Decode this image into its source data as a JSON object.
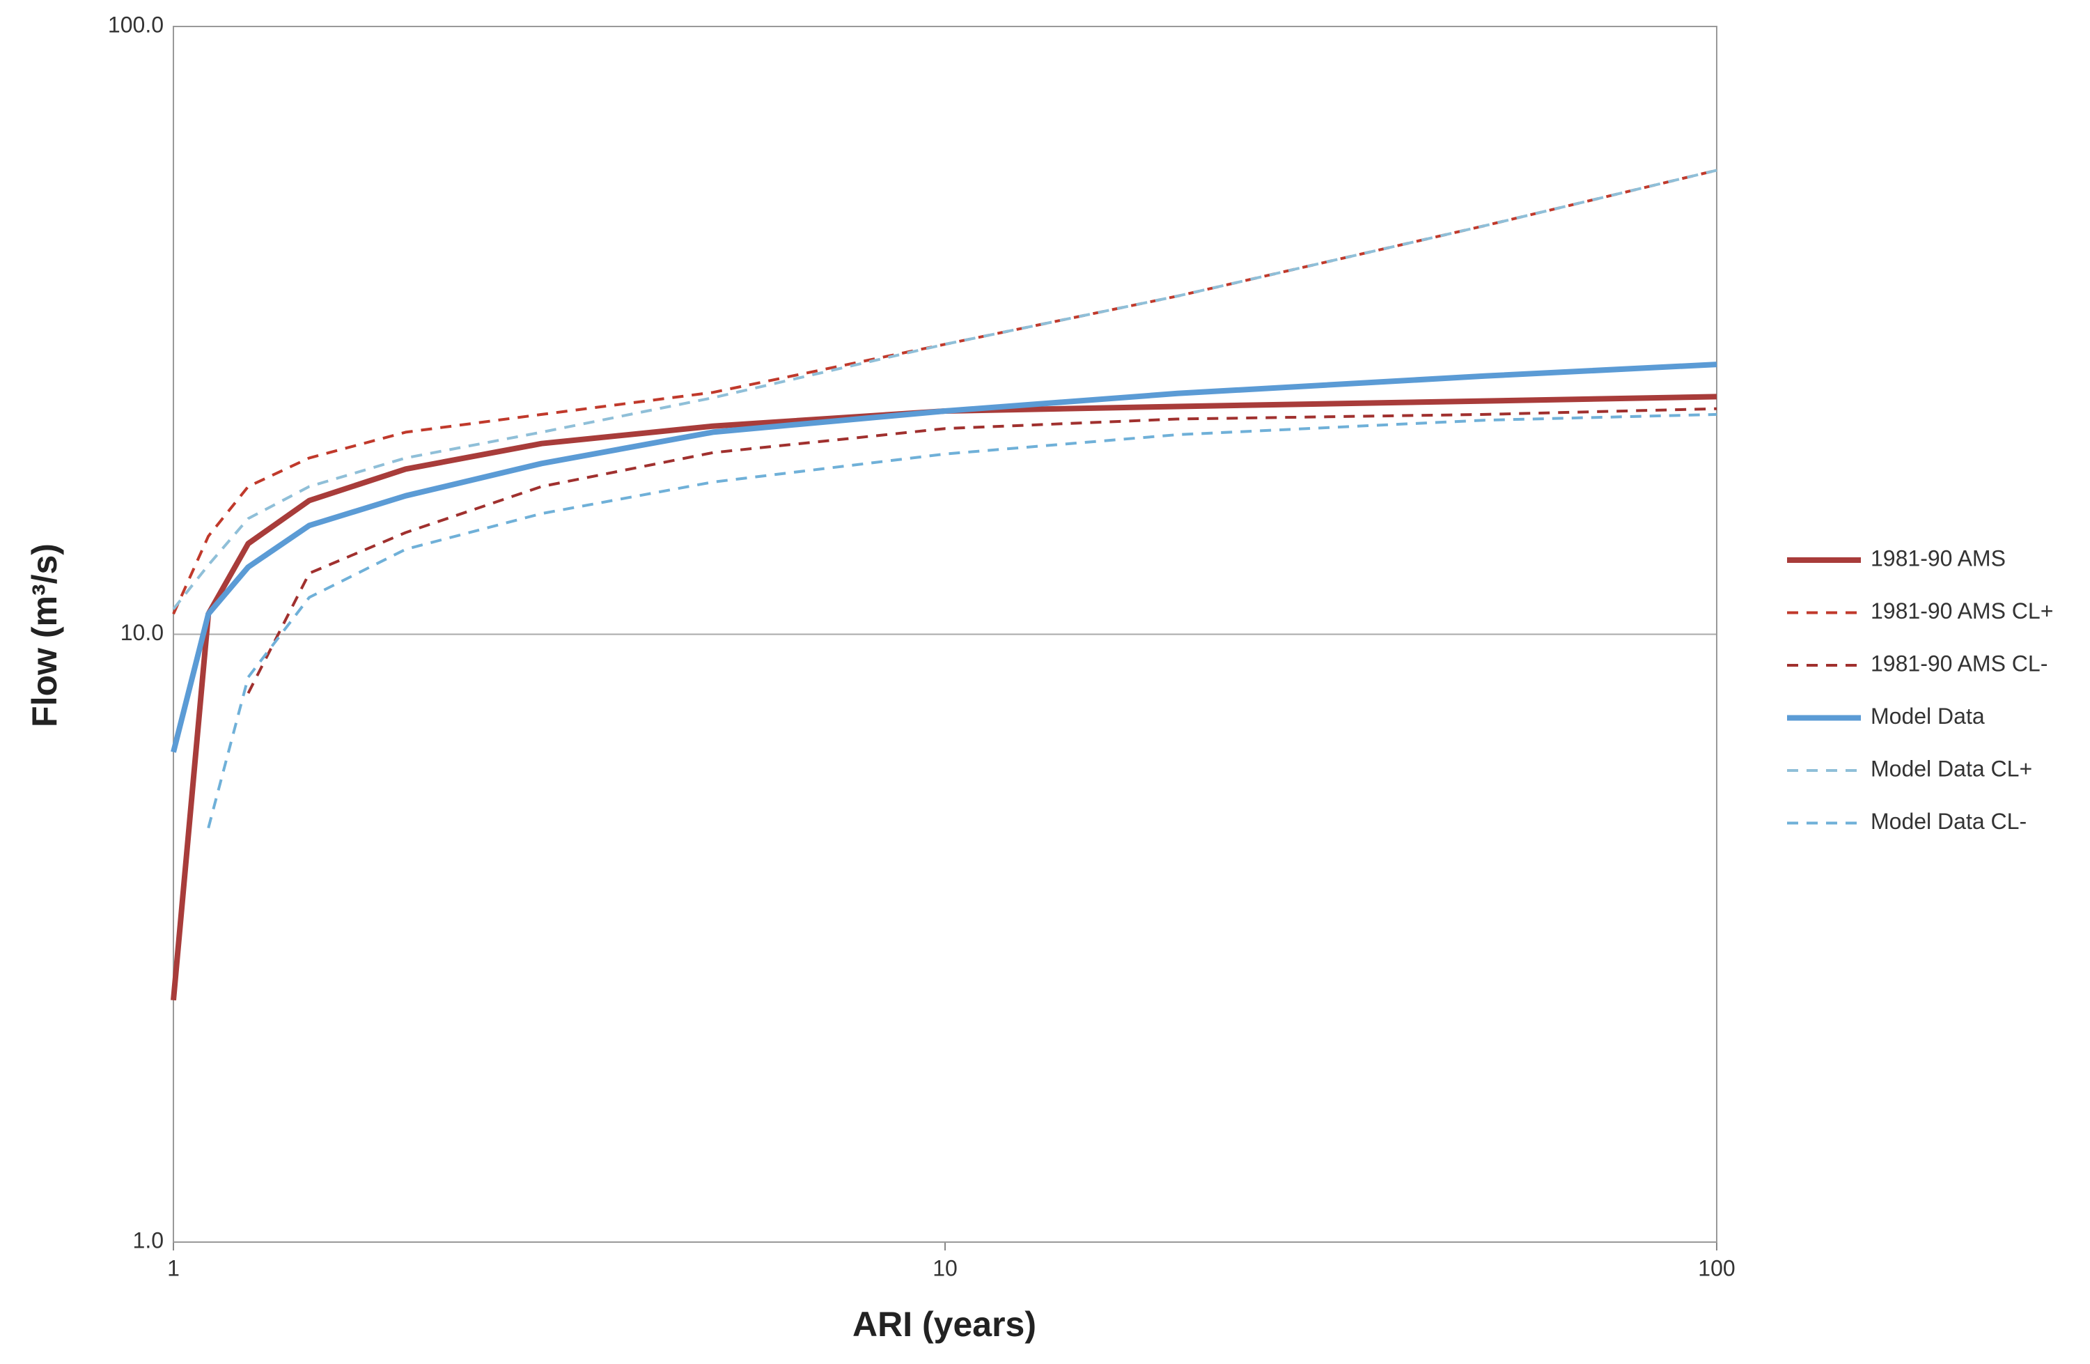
{
  "chart_data": {
    "type": "line",
    "x_label": "ARI (years)",
    "y_label": "Flow (m³/s)",
    "x": [
      1,
      1.11,
      1.25,
      1.5,
      2,
      3,
      5,
      10,
      20,
      50,
      100
    ],
    "xlim": [
      1,
      100
    ],
    "ylim": [
      1,
      100
    ],
    "xscale": "log",
    "yscale": "log",
    "xticks": [
      1,
      10,
      100
    ],
    "yticks": [
      {
        "value": 1,
        "label": "1.0"
      },
      {
        "value": 10,
        "label": "10.0"
      },
      {
        "value": 100,
        "label": "100.0"
      }
    ],
    "grid": true,
    "legend": "right",
    "series": [
      {
        "name": "1981-90 AMS",
        "color": "#a83c3a",
        "dash": false,
        "values": [
          2.5,
          10.8,
          14.1,
          16.6,
          18.7,
          20.6,
          22,
          23.3,
          23.7,
          24.2,
          24.6
        ]
      },
      {
        "name": "1981-90 AMS CL+",
        "color": "#c0392b",
        "dash": true,
        "values": [
          10.8,
          14.5,
          17.5,
          19.5,
          21.5,
          23,
          25,
          30,
          36,
          47,
          58
        ]
      },
      {
        "name": "1981-90 AMS CL-",
        "color": "#a0302e",
        "dash": true,
        "values": [
          null,
          null,
          8,
          12.6,
          14.7,
          17.5,
          19.9,
          21.8,
          22.6,
          23,
          23.5
        ]
      },
      {
        "name": "Model Data",
        "color": "#5b9bd5",
        "dash": false,
        "values": [
          6.4,
          10.8,
          12.9,
          15.1,
          16.9,
          19.1,
          21.5,
          23.3,
          24.9,
          26.6,
          27.8
        ]
      },
      {
        "name": "Model Data CL+",
        "color": "#8fbfd8",
        "dash": true,
        "values": [
          11,
          13,
          15.5,
          17.5,
          19.5,
          21.5,
          24.5,
          30,
          36,
          47,
          58
        ]
      },
      {
        "name": "Model Data CL-",
        "color": "#6fb0d8",
        "dash": true,
        "values": [
          null,
          4.8,
          8.5,
          11.5,
          13.8,
          15.8,
          17.8,
          19.8,
          21.3,
          22.5,
          23
        ]
      }
    ]
  }
}
